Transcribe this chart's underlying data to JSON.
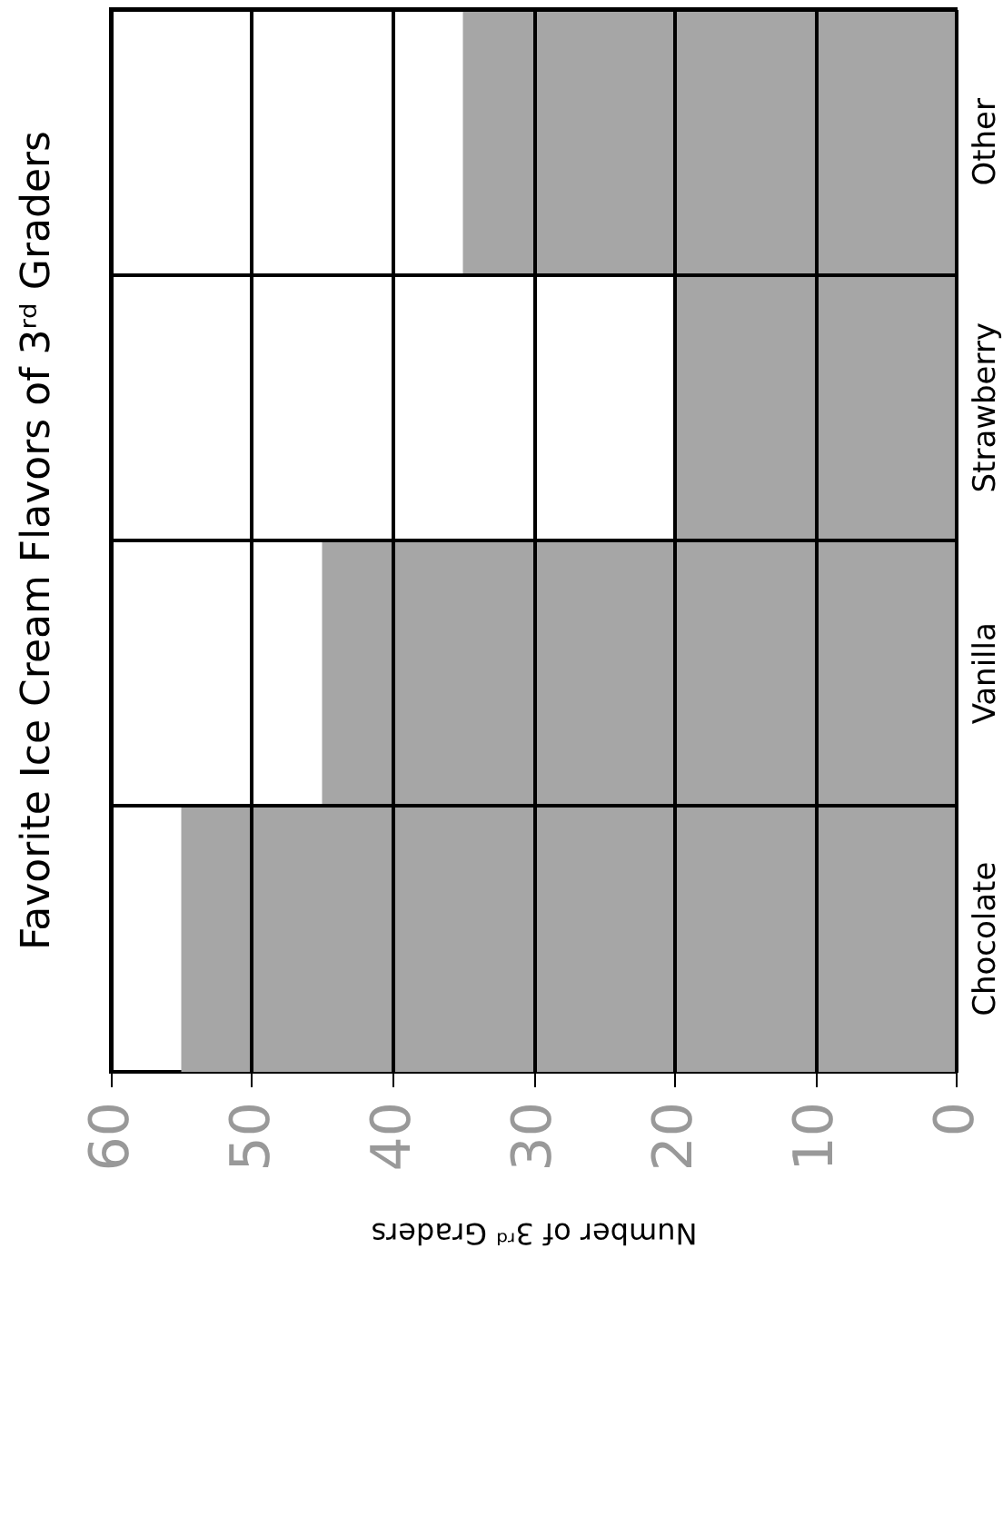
{
  "chart_data": {
    "type": "bar",
    "orientation": "horizontal",
    "title": "Favorite Ice Cream Flavors of 3ʳᵈ Graders",
    "xlabel": "Number of 3ʳᵈ Graders",
    "categories": [
      "Other",
      "Strawberry",
      "Vanilla",
      "Chocolate"
    ],
    "values": [
      35,
      20,
      45,
      55
    ],
    "color": "#a6a6a6",
    "xlim": [
      60,
      0
    ],
    "xticks": [
      0,
      10,
      20,
      30,
      40,
      50,
      60
    ],
    "grid": true
  }
}
